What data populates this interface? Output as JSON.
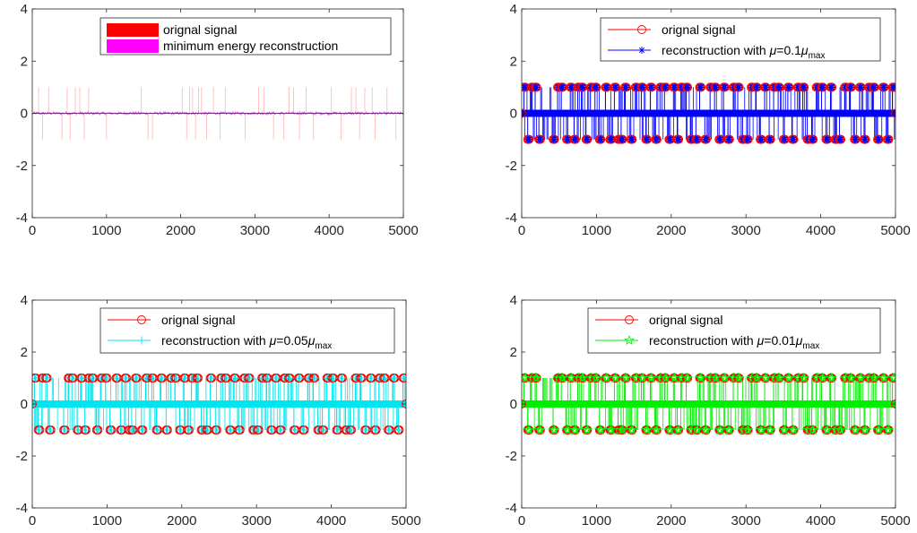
{
  "chart_data": [
    {
      "type": "line",
      "xlim": [
        0,
        5000
      ],
      "ylim": [
        -4,
        4
      ],
      "xticks": [
        "0",
        "1000",
        "2000",
        "3000",
        "4000",
        "5000"
      ],
      "yticks": [
        "4",
        "2",
        "0",
        "-2",
        "-4"
      ],
      "legend_position": "top-right",
      "series": [
        {
          "name": "orignal signal",
          "color": "#ff0000",
          "style": "stem-light"
        },
        {
          "name": "minimum energy reconstruction",
          "color": "#ff00ff",
          "style": "noise"
        }
      ],
      "spike_positions": [
        85,
        140,
        220,
        400,
        470,
        510,
        580,
        640,
        700,
        760,
        1000,
        1470,
        1560,
        1620,
        2020,
        2080,
        2120,
        2160,
        2200,
        2240,
        2280,
        2350,
        2440,
        2530,
        2600,
        2870,
        3050,
        3120,
        3250,
        3390,
        3460,
        3520,
        3600,
        3690,
        3790,
        4030,
        4160,
        4300,
        4360,
        4410,
        4480,
        4580,
        4620,
        4780,
        4900
      ],
      "spike_values": [
        1,
        -1,
        1,
        -1,
        1,
        -1,
        1,
        1,
        -1,
        1,
        -1,
        1,
        -1,
        -1,
        1,
        -1,
        1,
        1,
        -1,
        1,
        1,
        -1,
        1,
        -1,
        1,
        -1,
        1,
        1,
        -1,
        -1,
        1,
        1,
        -1,
        1,
        -1,
        1,
        -1,
        1,
        1,
        -1,
        1,
        1,
        -1,
        1,
        -1
      ]
    },
    {
      "type": "line",
      "xlim": [
        0,
        5000
      ],
      "ylim": [
        -4,
        4
      ],
      "xticks": [
        "0",
        "1000",
        "2000",
        "3000",
        "4000",
        "5000"
      ],
      "yticks": [
        "4",
        "2",
        "0",
        "-2",
        "-4"
      ],
      "legend_position": "top-right",
      "series": [
        {
          "name": "orignal signal",
          "color": "#ff0000",
          "marker": "circle"
        },
        {
          "name": "reconstruction with",
          "mu": "μ",
          "eq": "=0.1",
          "sub": "max",
          "color": "#0000ff",
          "marker": "asterisk"
        }
      ],
      "spike_positions": [
        30,
        80,
        130,
        180,
        230,
        420,
        480,
        530,
        600,
        650,
        700,
        750,
        800,
        860,
        920,
        980,
        1040,
        1120,
        1180,
        1240,
        1290,
        1330,
        1380,
        1460,
        1520,
        1600,
        1660,
        1720,
        1790,
        1850,
        1910,
        1970,
        2030,
        2080,
        2130,
        2200,
        2260,
        2330,
        2380,
        2450,
        2520,
        2580,
        2640,
        2700,
        2760,
        2830,
        2890,
        2950,
        3010,
        3070,
        3130,
        3190,
        3250,
        3310,
        3370,
        3430,
        3500,
        3560,
        3620,
        3690,
        3760,
        3820,
        3880,
        3940,
        4010,
        4070,
        4130,
        4190,
        4250,
        4320,
        4390,
        4450,
        4520,
        4580,
        4640,
        4700,
        4760,
        4830,
        4890,
        4960
      ],
      "spike_values": [
        1,
        -1,
        1,
        1,
        -1,
        -1,
        1,
        1,
        -1,
        1,
        -1,
        1,
        1,
        -1,
        1,
        1,
        -1,
        1,
        -1,
        1,
        -1,
        -1,
        1,
        -1,
        1,
        1,
        -1,
        1,
        -1,
        1,
        1,
        -1,
        1,
        -1,
        1,
        1,
        -1,
        -1,
        1,
        -1,
        1,
        1,
        -1,
        1,
        -1,
        1,
        1,
        -1,
        -1,
        1,
        1,
        -1,
        1,
        -1,
        1,
        1,
        -1,
        1,
        -1,
        1,
        1,
        -1,
        -1,
        1,
        1,
        -1,
        1,
        -1,
        -1,
        1,
        1,
        -1,
        1,
        -1,
        1,
        1,
        -1,
        1,
        -1,
        1
      ]
    },
    {
      "type": "line",
      "xlim": [
        0,
        5000
      ],
      "ylim": [
        -4,
        4
      ],
      "xticks": [
        "0",
        "1000",
        "2000",
        "3000",
        "4000",
        "5000"
      ],
      "yticks": [
        "4",
        "2",
        "0",
        "-2",
        "-4"
      ],
      "legend_position": "top-right",
      "series": [
        {
          "name": "orignal signal",
          "color": "#ff0000",
          "marker": "circle"
        },
        {
          "name": "reconstruction with",
          "mu": "μ",
          "eq": "=0.05",
          "sub": "max",
          "color": "#00e5ee",
          "marker": "plus"
        }
      ],
      "spike_positions": [
        30,
        80,
        130,
        180,
        230,
        420,
        480,
        530,
        600,
        650,
        700,
        750,
        800,
        860,
        920,
        980,
        1040,
        1120,
        1180,
        1240,
        1290,
        1330,
        1380,
        1460,
        1520,
        1600,
        1660,
        1720,
        1790,
        1850,
        1910,
        1970,
        2030,
        2080,
        2130,
        2200,
        2260,
        2330,
        2380,
        2450,
        2520,
        2580,
        2640,
        2700,
        2760,
        2830,
        2890,
        2950,
        3010,
        3070,
        3130,
        3190,
        3250,
        3310,
        3370,
        3430,
        3500,
        3560,
        3620,
        3690,
        3760,
        3820,
        3880,
        3940,
        4010,
        4070,
        4130,
        4190,
        4250,
        4320,
        4390,
        4450,
        4520,
        4580,
        4640,
        4700,
        4760,
        4830,
        4890,
        4960
      ],
      "spike_values": [
        1,
        -1,
        1,
        1,
        -1,
        -1,
        1,
        1,
        -1,
        1,
        -1,
        1,
        1,
        -1,
        1,
        1,
        -1,
        1,
        -1,
        1,
        -1,
        -1,
        1,
        -1,
        1,
        1,
        -1,
        1,
        -1,
        1,
        1,
        -1,
        1,
        -1,
        1,
        1,
        -1,
        -1,
        1,
        -1,
        1,
        1,
        -1,
        1,
        -1,
        1,
        1,
        -1,
        -1,
        1,
        1,
        -1,
        1,
        -1,
        1,
        1,
        -1,
        1,
        -1,
        1,
        1,
        -1,
        -1,
        1,
        1,
        -1,
        1,
        -1,
        -1,
        1,
        1,
        -1,
        1,
        -1,
        1,
        1,
        -1,
        1,
        -1,
        1
      ]
    },
    {
      "type": "line",
      "xlim": [
        0,
        5000
      ],
      "ylim": [
        -4,
        4
      ],
      "xticks": [
        "0",
        "1000",
        "2000",
        "3000",
        "4000",
        "5000"
      ],
      "yticks": [
        "4",
        "2",
        "0",
        "-2",
        "-4"
      ],
      "legend_position": "top-right",
      "series": [
        {
          "name": "orignal signal",
          "color": "#ff0000",
          "marker": "circle"
        },
        {
          "name": "reconstruction with",
          "mu": "μ",
          "eq": "=0.01",
          "sub": "max",
          "color": "#00ee00",
          "marker": "star"
        }
      ],
      "spike_positions": [
        30,
        80,
        130,
        180,
        230,
        420,
        480,
        530,
        600,
        650,
        700,
        750,
        800,
        860,
        920,
        980,
        1040,
        1120,
        1180,
        1240,
        1290,
        1330,
        1380,
        1460,
        1520,
        1600,
        1660,
        1720,
        1790,
        1850,
        1910,
        1970,
        2030,
        2080,
        2130,
        2200,
        2260,
        2330,
        2380,
        2450,
        2520,
        2580,
        2640,
        2700,
        2760,
        2830,
        2890,
        2950,
        3010,
        3070,
        3130,
        3190,
        3250,
        3310,
        3370,
        3430,
        3500,
        3560,
        3620,
        3690,
        3760,
        3820,
        3880,
        3940,
        4010,
        4070,
        4130,
        4190,
        4250,
        4320,
        4390,
        4450,
        4520,
        4580,
        4640,
        4700,
        4760,
        4830,
        4890,
        4960
      ],
      "spike_values": [
        1,
        -1,
        1,
        1,
        -1,
        -1,
        1,
        1,
        -1,
        1,
        -1,
        1,
        1,
        -1,
        1,
        1,
        -1,
        1,
        -1,
        1,
        -1,
        -1,
        1,
        -1,
        1,
        1,
        -1,
        1,
        -1,
        1,
        1,
        -1,
        1,
        -1,
        1,
        1,
        -1,
        -1,
        1,
        -1,
        1,
        1,
        -1,
        1,
        -1,
        1,
        1,
        -1,
        -1,
        1,
        1,
        -1,
        1,
        -1,
        1,
        1,
        -1,
        1,
        -1,
        1,
        1,
        -1,
        -1,
        1,
        1,
        -1,
        1,
        -1,
        -1,
        1,
        1,
        -1,
        1,
        -1,
        1,
        1,
        -1,
        1,
        -1,
        1
      ]
    }
  ]
}
